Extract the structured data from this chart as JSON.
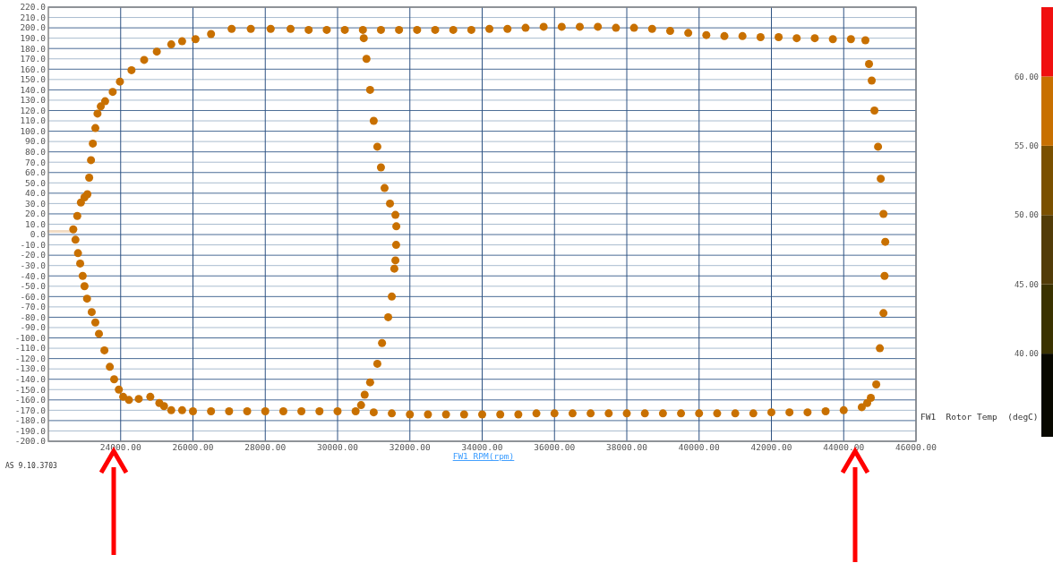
{
  "chart_data": {
    "type": "scatter",
    "xlabel": "FW1 RPM(rpm)",
    "clabel": "FW1  Rotor Temp  (degC)",
    "annotations": [
      "AS 9.10.3703"
    ],
    "xlim": [
      22000,
      46000
    ],
    "xticks": [
      {
        "value": 24000,
        "label": "24000.00"
      },
      {
        "value": 26000,
        "label": "26000.00"
      },
      {
        "value": 28000,
        "label": "28000.00"
      },
      {
        "value": 30000,
        "label": "30000.00"
      },
      {
        "value": 32000,
        "label": "32000.00"
      },
      {
        "value": 34000,
        "label": "34000.00"
      },
      {
        "value": 36000,
        "label": "36000.00"
      },
      {
        "value": 38000,
        "label": "38000.00"
      },
      {
        "value": 40000,
        "label": "40000.00"
      },
      {
        "value": 42000,
        "label": "42000.00"
      },
      {
        "value": 44000,
        "label": "44000.00"
      },
      {
        "value": 46000,
        "label": "46000.00"
      }
    ],
    "ylim": [
      -200,
      220
    ],
    "yticks": [
      {
        "value": -200,
        "label": "-200.0"
      },
      {
        "value": -190,
        "label": "-190.0"
      },
      {
        "value": -180,
        "label": "-180.0"
      },
      {
        "value": -170,
        "label": "-170.0"
      },
      {
        "value": -160,
        "label": "-160.0"
      },
      {
        "value": -150,
        "label": "-150.0"
      },
      {
        "value": -140,
        "label": "-140.0"
      },
      {
        "value": -130,
        "label": "-130.0"
      },
      {
        "value": -120,
        "label": "-120.0"
      },
      {
        "value": -110,
        "label": "-110.0"
      },
      {
        "value": -100,
        "label": "-100.0"
      },
      {
        "value": -90,
        "label": "-90.0"
      },
      {
        "value": -80,
        "label": "-80.0"
      },
      {
        "value": -70,
        "label": "-70.0"
      },
      {
        "value": -60,
        "label": "-60.0"
      },
      {
        "value": -50,
        "label": "-50.0"
      },
      {
        "value": -40,
        "label": "-40.0"
      },
      {
        "value": -30,
        "label": "-30.0"
      },
      {
        "value": -20,
        "label": "-20.0"
      },
      {
        "value": -10,
        "label": "-10.0"
      },
      {
        "value": 0,
        "label": "0.0"
      },
      {
        "value": 10,
        "label": "10.0"
      },
      {
        "value": 20,
        "label": "20.0"
      },
      {
        "value": 30,
        "label": "30.0"
      },
      {
        "value": 40,
        "label": "40.0"
      },
      {
        "value": 50,
        "label": "50.0"
      },
      {
        "value": 60,
        "label": "60.0"
      },
      {
        "value": 70,
        "label": "70.0"
      },
      {
        "value": 80,
        "label": "80.0"
      },
      {
        "value": 90,
        "label": "90.0"
      },
      {
        "value": 100,
        "label": "100.0"
      },
      {
        "value": 110,
        "label": "110.0"
      },
      {
        "value": 120,
        "label": "120.0"
      },
      {
        "value": 130,
        "label": "130.0"
      },
      {
        "value": 140,
        "label": "140.0"
      },
      {
        "value": 150,
        "label": "150.0"
      },
      {
        "value": 160,
        "label": "160.0"
      },
      {
        "value": 170,
        "label": "170.0"
      },
      {
        "value": 180,
        "label": "180.0"
      },
      {
        "value": 190,
        "label": "190.0"
      },
      {
        "value": 200,
        "label": "200.0"
      },
      {
        "value": 210,
        "label": "210.0"
      },
      {
        "value": 220,
        "label": "220.0"
      }
    ],
    "grid": true,
    "clim": [
      34,
      65
    ],
    "cticks": [
      {
        "value": 40,
        "label": "40.00"
      },
      {
        "value": 45,
        "label": "45.00"
      },
      {
        "value": 50,
        "label": "50.00"
      },
      {
        "value": 55,
        "label": "55.00"
      },
      {
        "value": 60,
        "label": "60.00"
      }
    ],
    "series": [
      {
        "type": "line",
        "color": "#f2dcc4",
        "x": [
          22000,
          22650
        ],
        "values": [
          3,
          3
        ]
      },
      {
        "color": "#c87000",
        "marker": "circle",
        "x": [
          22690,
          22800,
          22900,
          23000,
          23080,
          23130,
          23180,
          23230,
          23300,
          23360,
          23450,
          23570,
          23780,
          23980,
          24300,
          24650,
          25000,
          25400,
          25700,
          26070,
          26500,
          27070,
          27600,
          28150,
          28700,
          29200,
          29700,
          30200,
          30700,
          31200,
          31700,
          32200,
          32700,
          33200,
          33700,
          34200,
          34700,
          35200,
          35700,
          36200,
          36700,
          37200,
          37700,
          38200,
          38700,
          39200,
          39700,
          40200,
          40700,
          41200,
          41700,
          42200,
          42700,
          43200,
          43700,
          44200,
          44600,
          44700,
          44775,
          44850,
          44950,
          45025,
          45100,
          45150,
          45130,
          45100,
          45000,
          44900,
          44750,
          44650,
          44500,
          44000,
          43500,
          43000,
          42500,
          42000,
          41500,
          41000,
          40500,
          40000,
          39500,
          39000,
          38500,
          38000,
          37500,
          37000,
          36500,
          36000,
          35500,
          35000,
          34500,
          34000,
          33500,
          33000,
          32500,
          32000,
          31500,
          31000,
          30500,
          30000,
          29500,
          29000,
          28500,
          28000,
          27500,
          27000,
          26500,
          26000,
          25700,
          25400,
          25200,
          25070,
          24820,
          24500,
          24230,
          24070,
          23950,
          23820,
          23700,
          23550,
          23400,
          23300,
          23200,
          23070,
          23000,
          22950,
          22880,
          22820,
          22750,
          30725,
          30800,
          30900,
          31000,
          31100,
          31200,
          31300,
          31450,
          31600,
          31625,
          31620,
          31600,
          31570,
          31500,
          31400,
          31230,
          31100,
          30900,
          30750,
          30650
        ],
        "values": [
          5,
          18,
          31,
          36,
          39,
          55,
          72,
          88,
          103,
          117,
          124,
          129,
          138,
          148,
          159,
          169,
          177,
          184,
          187,
          189,
          194,
          199,
          199,
          199,
          199,
          198,
          198,
          198,
          198,
          198,
          198,
          198,
          198,
          198,
          198,
          199,
          199,
          200,
          201,
          201,
          201,
          201,
          200,
          200,
          199,
          197,
          195,
          193,
          192,
          192,
          191,
          191,
          190,
          190,
          189,
          189,
          188,
          165,
          149,
          120,
          85,
          54,
          20,
          -7,
          -40,
          -76,
          -110,
          -145,
          -158,
          -163,
          -167,
          -170,
          -171,
          -172,
          -172,
          -172,
          -173,
          -173,
          -173,
          -173,
          -173,
          -173,
          -173,
          -173,
          -173,
          -173,
          -173,
          -173,
          -173,
          -174,
          -174,
          -174,
          -174,
          -174,
          -174,
          -174,
          -173,
          -172,
          -171,
          -171,
          -171,
          -171,
          -171,
          -171,
          -171,
          -171,
          -171,
          -171,
          -170,
          -170,
          -166,
          -163,
          -157,
          -159,
          -160,
          -157,
          -150,
          -140,
          -128,
          -112,
          -96,
          -85,
          -75,
          -62,
          -50,
          -40,
          -28,
          -18,
          -5,
          190,
          170,
          140,
          110,
          85,
          65,
          45,
          30,
          19,
          8,
          -10,
          -25,
          -33,
          -60,
          -80,
          -105,
          -125,
          -143,
          -155,
          -165
        ]
      }
    ]
  }
}
